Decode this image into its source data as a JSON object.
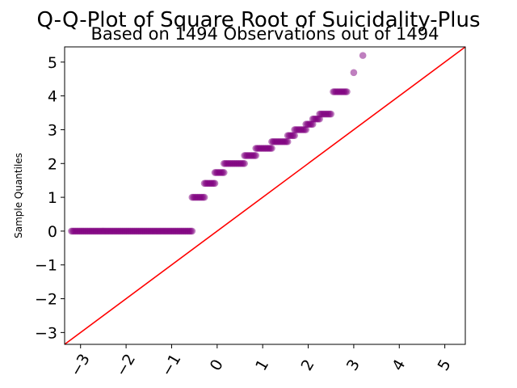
{
  "chart_data": {
    "type": "scatter",
    "title": "Q-Q-Plot of Square Root of Suicidality-Plus",
    "subtitle": "Based on 1494 Observations out of 1494",
    "xlabel": "",
    "ylabel": "Sample Quantiles",
    "xlim": [
      -3.35,
      5.45
    ],
    "ylim": [
      -3.35,
      5.45
    ],
    "x_ticks": [
      -3,
      -2,
      -1,
      0,
      1,
      2,
      3,
      4,
      5
    ],
    "y_ticks": [
      -3,
      -2,
      -1,
      0,
      1,
      2,
      3,
      4,
      5
    ],
    "x_tick_labels": [
      "−3",
      "−2",
      "−1",
      "0",
      "1",
      "2",
      "3",
      "4",
      "5"
    ],
    "y_tick_labels": [
      "−3",
      "−2",
      "−1",
      "0",
      "1",
      "2",
      "3",
      "4",
      "5"
    ],
    "marker_color": "#800080",
    "line_color": "#ff0000",
    "reference_line": {
      "slope": 1,
      "intercept": 0
    },
    "point_runs": [
      {
        "y": 0,
        "x_from": -3.2,
        "x_to": -0.55
      },
      {
        "y": 1.0,
        "x_from": -0.55,
        "x_to": -0.28
      },
      {
        "y": 1.414,
        "x_from": -0.28,
        "x_to": -0.05
      },
      {
        "y": 1.732,
        "x_from": -0.05,
        "x_to": 0.15
      },
      {
        "y": 2.0,
        "x_from": 0.15,
        "x_to": 0.6
      },
      {
        "y": 2.236,
        "x_from": 0.6,
        "x_to": 0.85
      },
      {
        "y": 2.449,
        "x_from": 0.85,
        "x_to": 1.2
      },
      {
        "y": 2.646,
        "x_from": 1.2,
        "x_to": 1.55
      },
      {
        "y": 2.828,
        "x_from": 1.55,
        "x_to": 1.7
      },
      {
        "y": 3.0,
        "x_from": 1.7,
        "x_to": 1.95
      },
      {
        "y": 3.162,
        "x_from": 1.95,
        "x_to": 2.1
      },
      {
        "y": 3.317,
        "x_from": 2.1,
        "x_to": 2.25
      },
      {
        "y": 3.464,
        "x_from": 2.25,
        "x_to": 2.5
      },
      {
        "y": 4.123,
        "x_from": 2.55,
        "x_to": 2.85
      },
      {
        "y": 4.69,
        "x_from": 3.0,
        "x_to": 3.0
      },
      {
        "y": 5.196,
        "x_from": 3.2,
        "x_to": 3.2
      }
    ]
  }
}
